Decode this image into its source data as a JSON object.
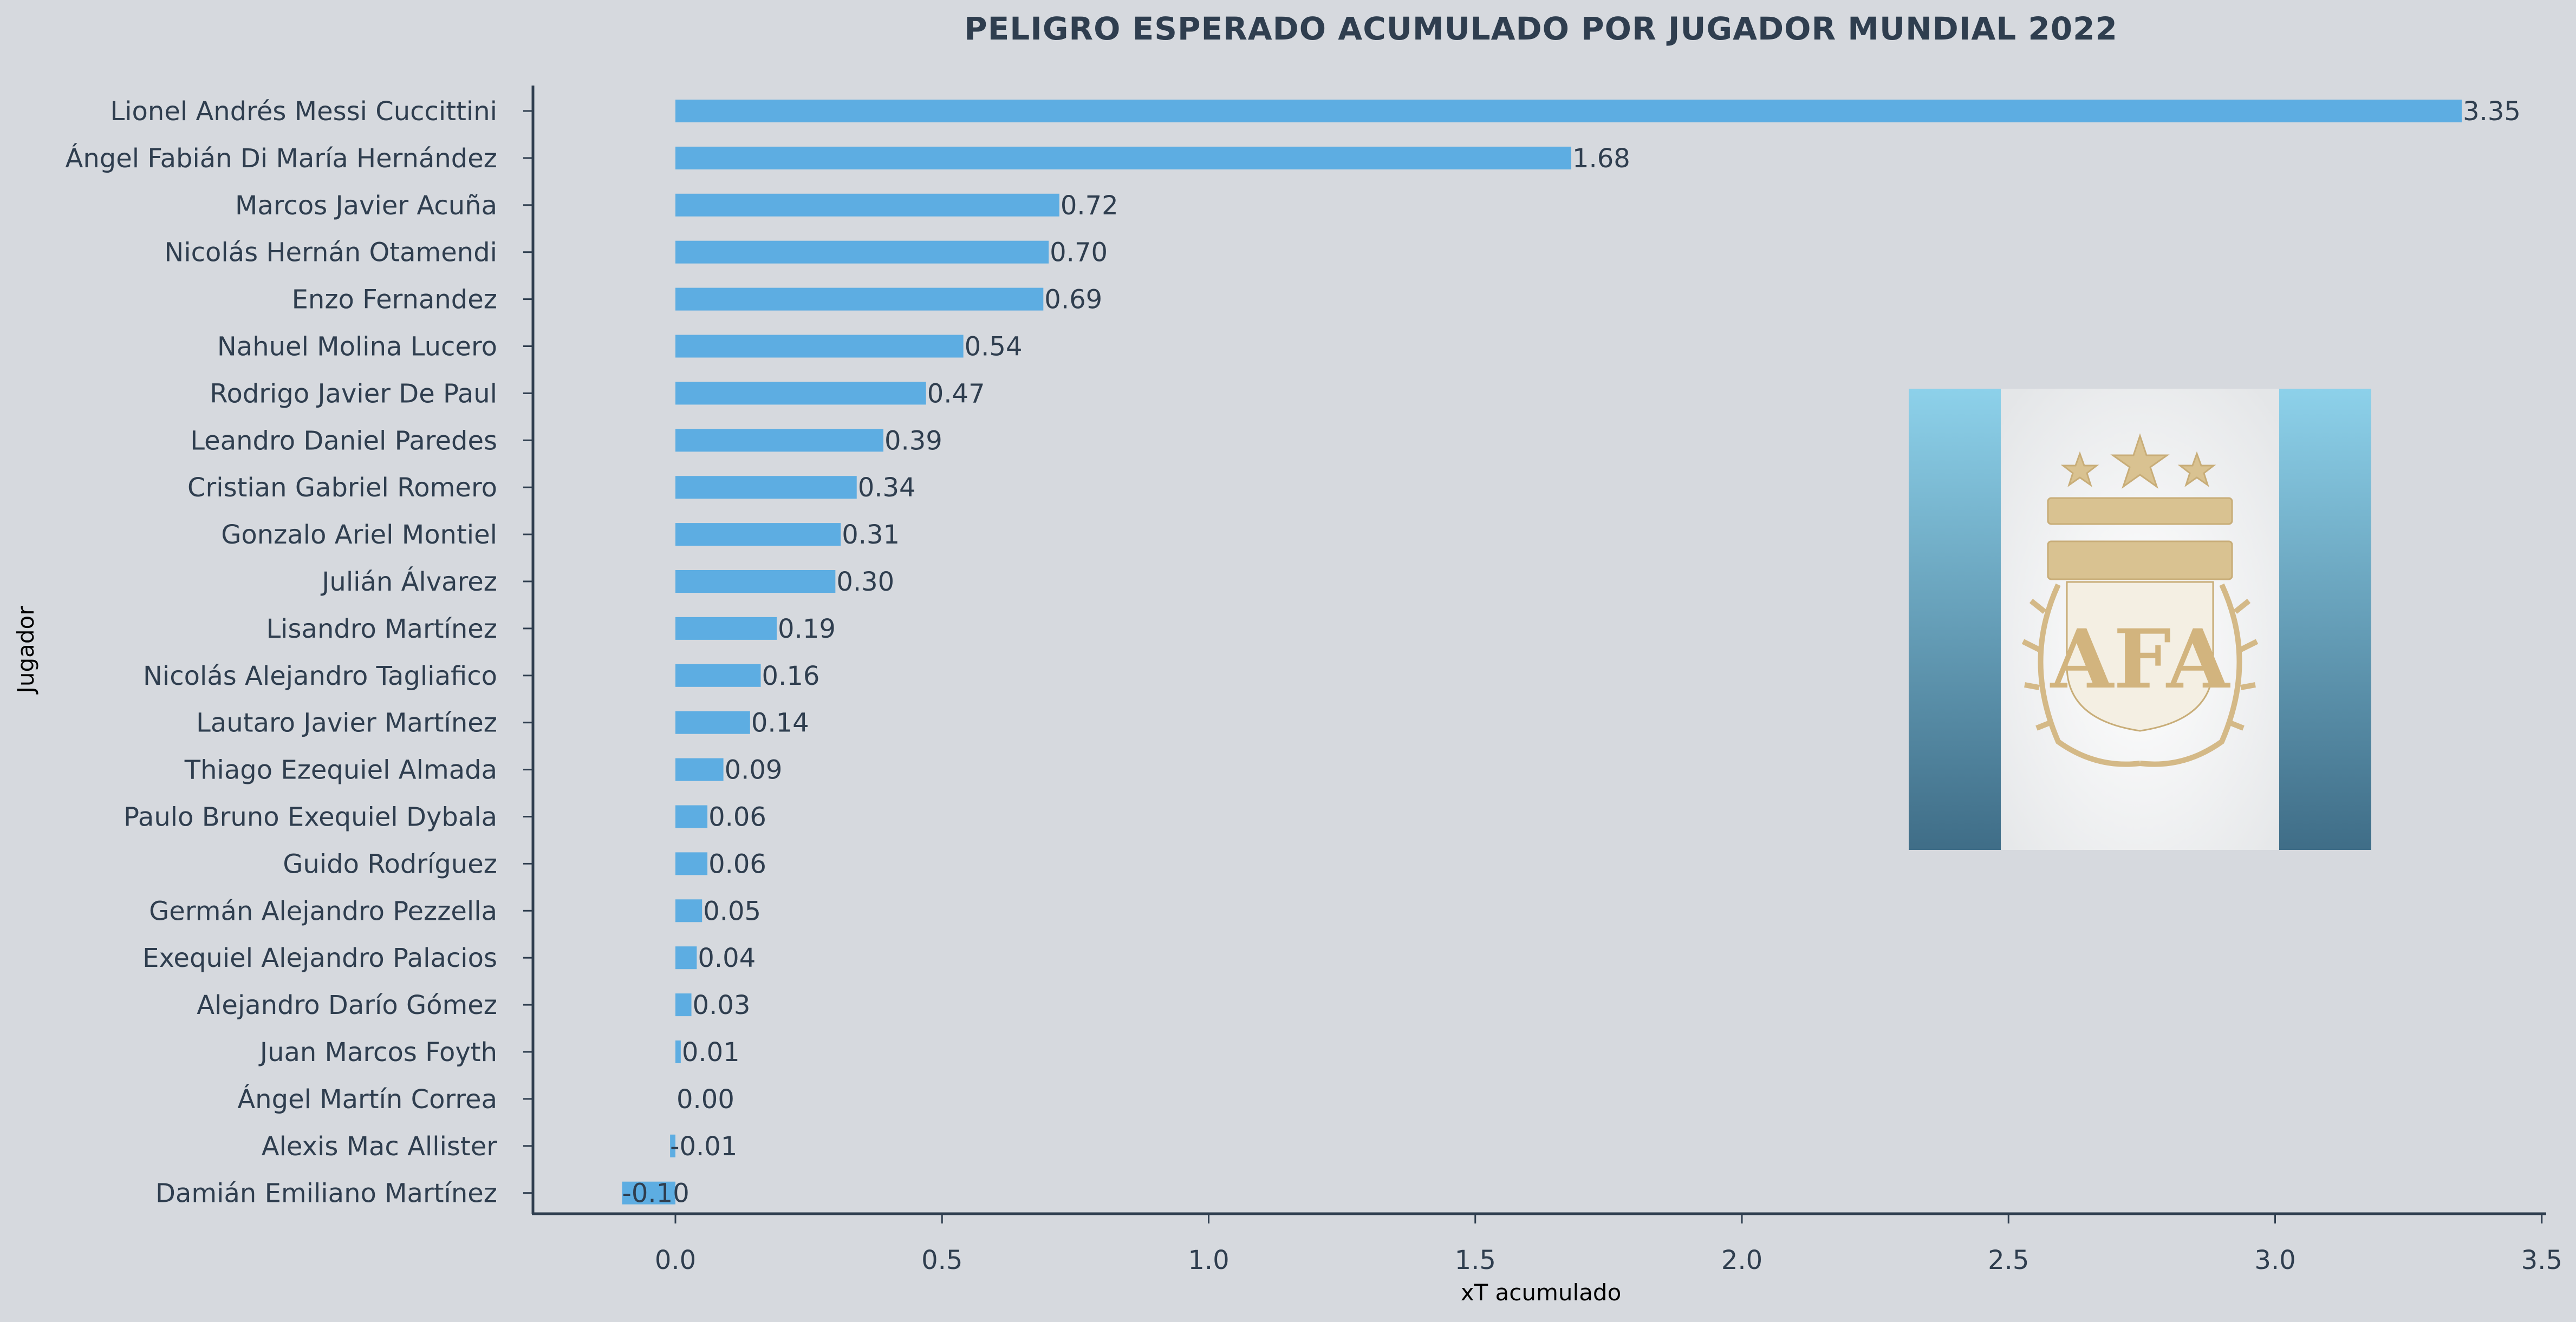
{
  "chart_data": {
    "type": "bar",
    "orientation": "horizontal",
    "title": "PELIGRO ESPERADO ACUMULADO POR JUGADOR MUNDIAL 2022",
    "xlabel": "xT acumulado",
    "ylabel": "Jugador",
    "xlim": [
      -0.27,
      3.5
    ],
    "xticks": [
      0.0,
      0.5,
      1.0,
      1.5,
      2.0,
      2.5,
      3.0,
      3.5
    ],
    "xtick_labels": [
      "0.0",
      "0.5",
      "1.0",
      "1.5",
      "2.0",
      "2.5",
      "3.0",
      "3.5"
    ],
    "grid": false,
    "bar_color": "#5dade2",
    "categories": [
      "Lionel Andrés Messi Cuccittini",
      "Ángel Fabián Di María Hernández",
      "Marcos Javier Acuña",
      "Nicolás Hernán Otamendi",
      "Enzo Fernandez",
      "Nahuel Molina Lucero",
      "Rodrigo Javier De Paul",
      "Leandro Daniel Paredes",
      "Cristian Gabriel Romero",
      "Gonzalo Ariel Montiel",
      "Julián Álvarez",
      "Lisandro Martínez",
      "Nicolás Alejandro Tagliafico",
      "Lautaro Javier Martínez",
      "Thiago Ezequiel Almada",
      "Paulo Bruno Exequiel Dybala",
      "Guido Rodríguez",
      "Germán Alejandro Pezzella",
      "Exequiel Alejandro Palacios",
      "Alejandro Darío Gómez",
      "Juan Marcos Foyth",
      "Ángel Martín Correa",
      "Alexis Mac Allister",
      "Damián Emiliano Martínez"
    ],
    "values": [
      3.35,
      1.68,
      0.72,
      0.7,
      0.69,
      0.54,
      0.47,
      0.39,
      0.34,
      0.31,
      0.3,
      0.19,
      0.16,
      0.14,
      0.09,
      0.06,
      0.06,
      0.05,
      0.04,
      0.03,
      0.01,
      0.0,
      -0.01,
      -0.1
    ],
    "value_labels": [
      "3.35",
      "1.68",
      "0.72",
      "0.70",
      "0.69",
      "0.54",
      "0.47",
      "0.39",
      "0.34",
      "0.31",
      "0.30",
      "0.19",
      "0.16",
      "0.14",
      "0.09",
      "0.06",
      "0.06",
      "0.05",
      "0.04",
      "0.03",
      "0.01",
      "0.00",
      "-0.01",
      "-0.10"
    ]
  },
  "emblem": {
    "icon": "afa-crest-icon",
    "text": "AFA",
    "colors": {
      "stripe": "#6cb8d8",
      "center": "#ffffff",
      "gold": "#d9c291"
    }
  }
}
